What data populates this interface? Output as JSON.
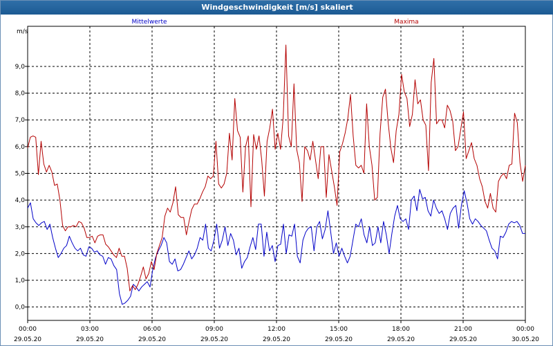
{
  "header": {
    "title": "Windgeschwindigkeit [m/s] skaliert"
  },
  "chart_data": {
    "type": "line",
    "unit_label": "m/s",
    "x_tick_times": [
      "00:00",
      "03:00",
      "06:00",
      "09:00",
      "12:00",
      "15:00",
      "18:00",
      "21:00",
      "00:00"
    ],
    "x_tick_dates": [
      "29.05.20",
      "29.05.20",
      "29.05.20",
      "29.05.20",
      "29.05.20",
      "29.05.20",
      "29.05.20",
      "29.05.20",
      "30.05.20"
    ],
    "y_ticks": [
      "0,0",
      "1,0",
      "2,0",
      "3,0",
      "4,0",
      "5,0",
      "6,0",
      "7,0",
      "8,0",
      "9,0"
    ],
    "ylim": [
      -0.5,
      10.5
    ],
    "x_range_hours": [
      0,
      24
    ],
    "grid": true,
    "series": [
      {
        "name": "Mittelwerte",
        "color": "#0000c8",
        "values": [
          3.7,
          3.9,
          3.3,
          3.15,
          3.05,
          3.15,
          3.2,
          2.9,
          3.1,
          2.6,
          2.2,
          1.85,
          2.0,
          2.2,
          2.3,
          2.65,
          2.4,
          2.2,
          2.1,
          2.2,
          1.95,
          1.9,
          2.25,
          2.2,
          2.05,
          2.1,
          1.95,
          1.9,
          1.6,
          1.85,
          1.8,
          1.55,
          1.4,
          0.5,
          0.1,
          0.15,
          0.25,
          0.4,
          0.85,
          0.75,
          0.6,
          0.75,
          0.85,
          0.95,
          0.75,
          1.4,
          1.85,
          2.1,
          2.3,
          2.6,
          2.4,
          1.7,
          1.6,
          1.8,
          1.35,
          1.4,
          1.6,
          1.85,
          2.1,
          1.8,
          1.95,
          2.2,
          2.6,
          2.5,
          3.1,
          2.2,
          2.1,
          2.5,
          3.1,
          2.2,
          2.5,
          3.0,
          2.3,
          2.75,
          2.5,
          1.95,
          2.2,
          1.45,
          1.7,
          1.85,
          2.25,
          2.6,
          2.15,
          3.1,
          3.1,
          1.9,
          2.8,
          2.1,
          2.3,
          1.7,
          2.3,
          2.35,
          3.1,
          2.0,
          2.7,
          2.65,
          3.1,
          1.9,
          1.65,
          2.5,
          2.8,
          2.95,
          3.0,
          2.1,
          3.0,
          3.2,
          2.55,
          2.9,
          3.6,
          2.8,
          2.0,
          2.4,
          1.9,
          2.2,
          1.9,
          1.65,
          1.9,
          2.5,
          3.1,
          3.0,
          3.3,
          2.7,
          2.4,
          3.0,
          2.3,
          2.4,
          3.0,
          2.4,
          3.2,
          2.7,
          2.0,
          2.75,
          3.4,
          3.8,
          3.3,
          3.2,
          3.3,
          2.9,
          4.0,
          4.15,
          3.6,
          4.4,
          4.05,
          4.1,
          3.6,
          3.4,
          4.0,
          3.7,
          3.5,
          3.6,
          3.3,
          2.9,
          3.5,
          3.7,
          3.8,
          2.95,
          3.8,
          4.35,
          3.9,
          3.3,
          3.1,
          3.3,
          3.2,
          3.05,
          2.95,
          2.85,
          2.5,
          2.2,
          2.1,
          1.8,
          2.65,
          2.6,
          2.8,
          3.1,
          3.2,
          3.15,
          3.2,
          3.05,
          2.75,
          2.75
        ]
      },
      {
        "name": "Maxima",
        "color": "#b40000",
        "values": [
          5.95,
          6.35,
          6.4,
          6.35,
          4.95,
          6.2,
          5.35,
          5.05,
          5.3,
          5.05,
          4.55,
          4.6,
          4.0,
          3.05,
          2.85,
          3.0,
          3.0,
          3.05,
          3.0,
          3.2,
          3.15,
          2.95,
          2.6,
          2.6,
          2.65,
          2.4,
          2.65,
          2.7,
          2.7,
          2.35,
          2.25,
          2.1,
          1.95,
          1.85,
          2.2,
          1.9,
          1.9,
          1.45,
          0.6,
          0.8,
          0.65,
          0.85,
          1.15,
          1.5,
          1.05,
          1.25,
          1.7,
          1.4,
          2.0,
          2.3,
          2.6,
          3.4,
          3.7,
          3.55,
          3.9,
          4.5,
          3.45,
          3.35,
          3.35,
          2.7,
          3.2,
          3.65,
          3.85,
          3.85,
          4.05,
          4.3,
          4.5,
          4.9,
          4.8,
          4.9,
          6.2,
          4.6,
          4.45,
          4.6,
          5.0,
          6.5,
          5.5,
          7.8,
          6.6,
          6.35,
          4.3,
          6.0,
          6.4,
          3.75,
          6.45,
          5.9,
          6.4,
          5.5,
          4.15,
          6.2,
          6.7,
          7.4,
          5.9,
          6.5,
          5.9,
          7.1,
          9.8,
          6.4,
          6.0,
          8.35,
          5.9,
          5.4,
          3.95,
          6.0,
          5.85,
          5.5,
          6.2,
          5.5,
          4.8,
          6.0,
          6.0,
          4.1,
          5.7,
          5.1,
          4.5,
          3.8,
          5.8,
          6.1,
          6.5,
          7.05,
          7.95,
          6.4,
          5.3,
          5.2,
          5.3,
          5.0,
          7.6,
          6.0,
          5.3,
          4.0,
          4.1,
          6.5,
          7.85,
          8.15,
          6.9,
          5.95,
          5.4,
          6.6,
          7.2,
          8.7,
          8.05,
          7.8,
          6.75,
          7.2,
          8.5,
          7.6,
          7.75,
          7.0,
          6.8,
          5.1,
          8.4,
          9.3,
          6.85,
          7.0,
          7.0,
          6.7,
          7.55,
          7.35,
          6.95,
          5.85,
          6.0,
          6.65,
          7.3,
          5.55,
          5.85,
          6.15,
          5.55,
          5.3,
          4.8,
          4.5,
          3.95,
          3.7,
          4.25,
          3.7,
          3.55,
          4.7,
          4.9,
          5.0,
          4.8,
          5.3,
          5.35,
          7.25,
          6.9,
          5.4,
          4.7,
          5.3
        ]
      }
    ]
  }
}
